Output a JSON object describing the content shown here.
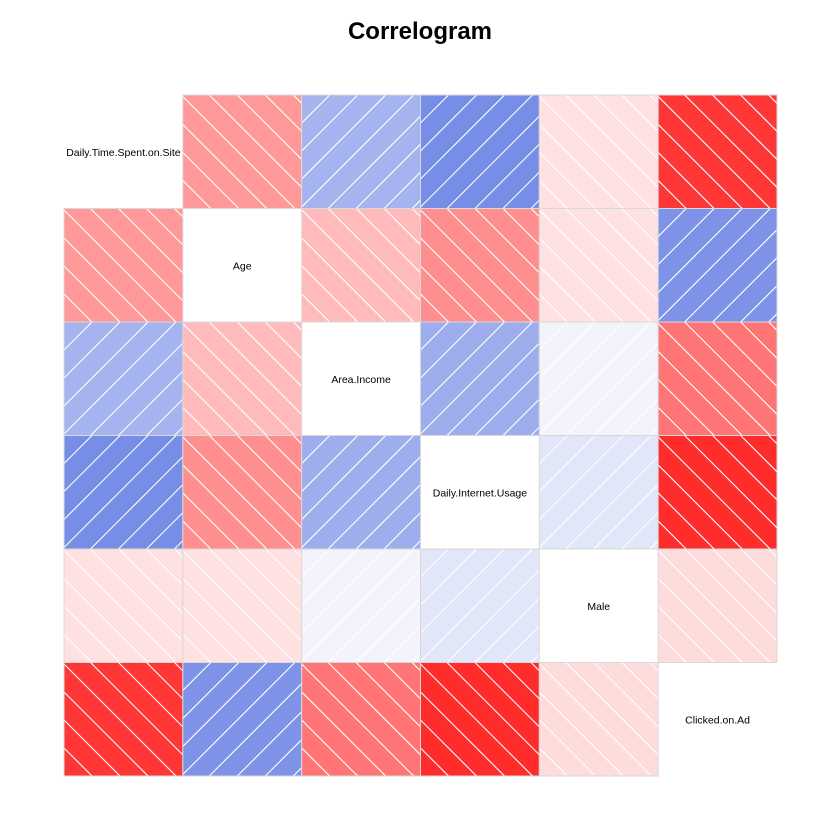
{
  "chart_data": {
    "type": "heatmap",
    "title": "Correlogram",
    "variables": [
      "Daily.Time.Spent.on.Site",
      "Age",
      "Area.Income",
      "Daily.Internet.Usage",
      "Male",
      "Clicked.on.Ad"
    ],
    "matrix": [
      [
        1.0,
        -0.33,
        0.31,
        0.52,
        -0.02,
        -0.75
      ],
      [
        -0.33,
        1.0,
        -0.18,
        -0.37,
        -0.02,
        0.49
      ],
      [
        0.31,
        -0.18,
        1.0,
        0.34,
        0.0,
        -0.48
      ],
      [
        0.52,
        -0.37,
        0.34,
        1.0,
        0.03,
        -0.79
      ],
      [
        -0.02,
        -0.02,
        0.0,
        0.03,
        1.0,
        -0.04
      ],
      [
        -0.75,
        0.49,
        -0.48,
        -0.79,
        -0.04,
        1.0
      ]
    ],
    "colors": {
      "positive": "#3b5bdb",
      "negative": "#ff2a2a",
      "neutral": "#ffffff",
      "cell_border": "#d9d9d9",
      "hatch": "#ffffff"
    },
    "diagonal": "labels",
    "hatching": "positive correlations slanted up, negative slanted down"
  }
}
